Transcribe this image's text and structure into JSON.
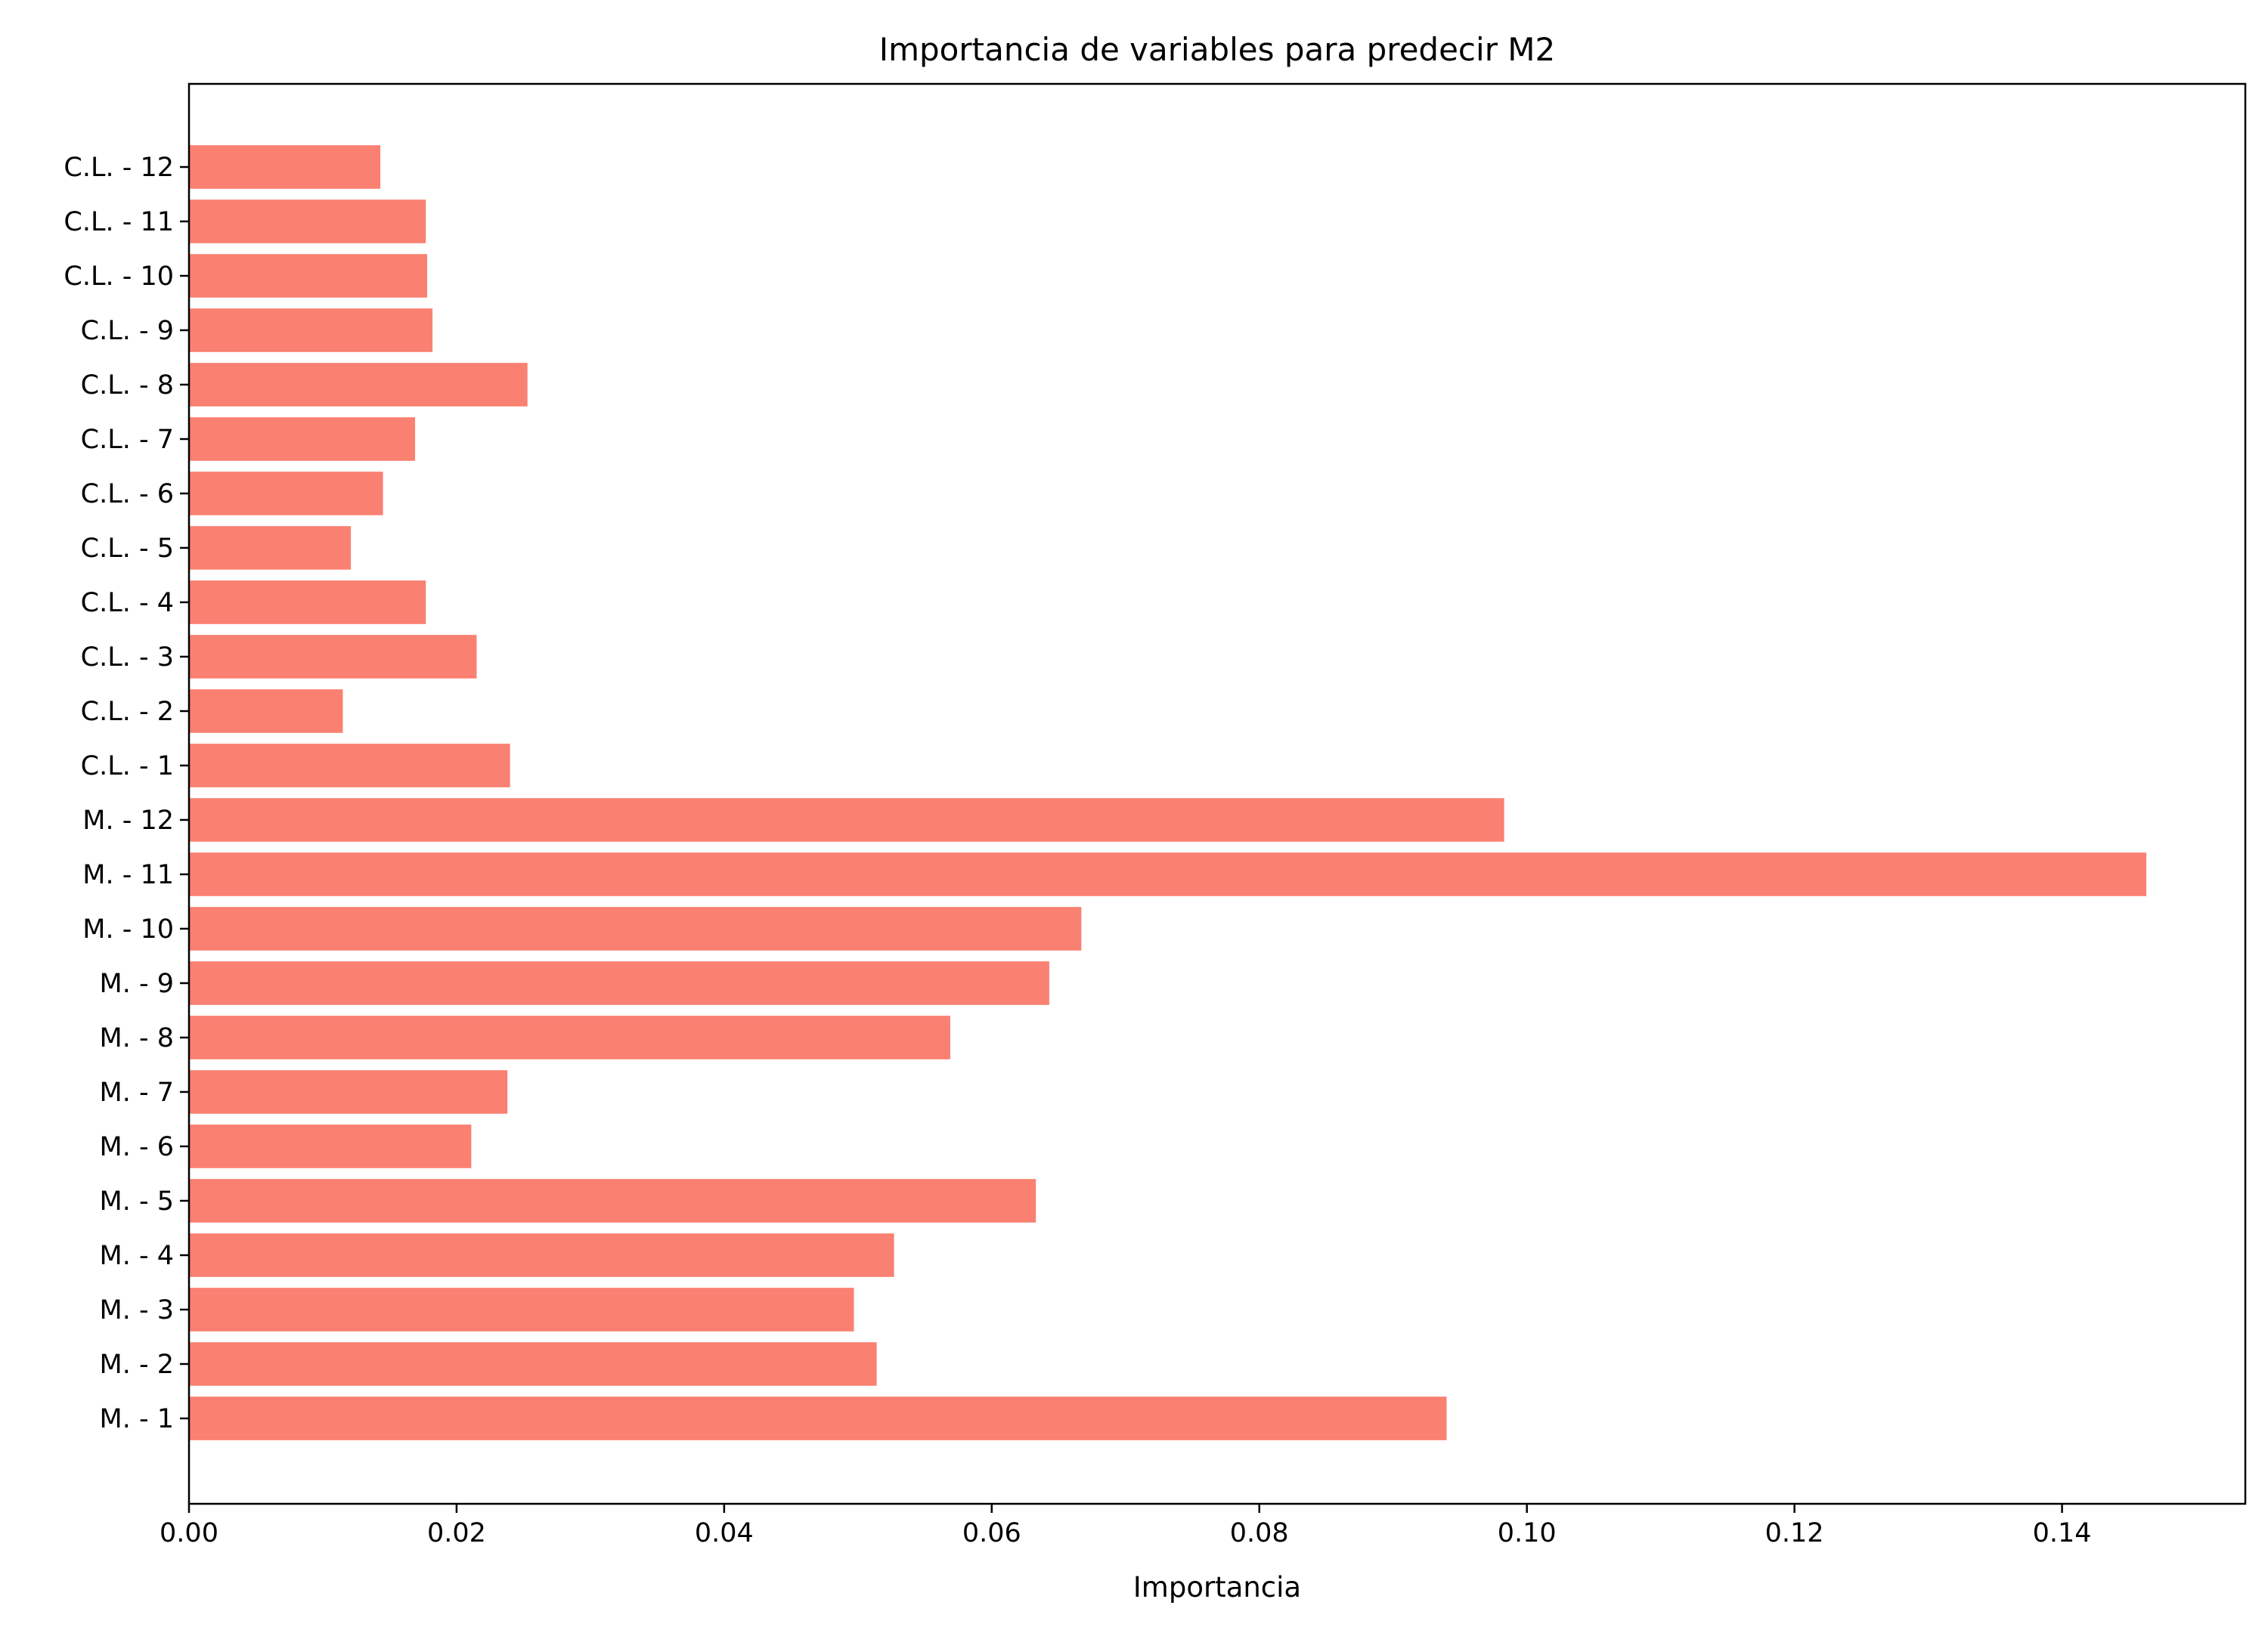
{
  "chart_data": {
    "type": "bar",
    "orientation": "horizontal",
    "title": "Importancia de variables para predecir M2",
    "xlabel": "Importancia",
    "ylabel": "",
    "xlim": [
      0.0,
      0.1537
    ],
    "xticks": [
      "0.00",
      "0.02",
      "0.04",
      "0.06",
      "0.08",
      "0.10",
      "0.12",
      "0.14"
    ],
    "bar_color": "#fa8072",
    "categories": [
      "M. - 1",
      "M. - 2",
      "M. - 3",
      "M. - 4",
      "M. - 5",
      "M. - 6",
      "M. - 7",
      "M. - 8",
      "M. - 9",
      "M. - 10",
      "M. - 11",
      "M. - 12",
      "C.L. - 1",
      "C.L. - 2",
      "C.L. - 3",
      "C.L. - 4",
      "C.L. - 5",
      "C.L. - 6",
      "C.L. - 7",
      "C.L. - 8",
      "C.L. - 9",
      "C.L. - 10",
      "C.L. - 11",
      "C.L. - 12"
    ],
    "values": [
      0.094,
      0.0514,
      0.0497,
      0.0527,
      0.0633,
      0.0211,
      0.0238,
      0.0569,
      0.0643,
      0.0667,
      0.1463,
      0.0983,
      0.024,
      0.0115,
      0.0215,
      0.0177,
      0.0121,
      0.0145,
      0.0169,
      0.0253,
      0.0182,
      0.0178,
      0.0177,
      0.0143
    ]
  }
}
